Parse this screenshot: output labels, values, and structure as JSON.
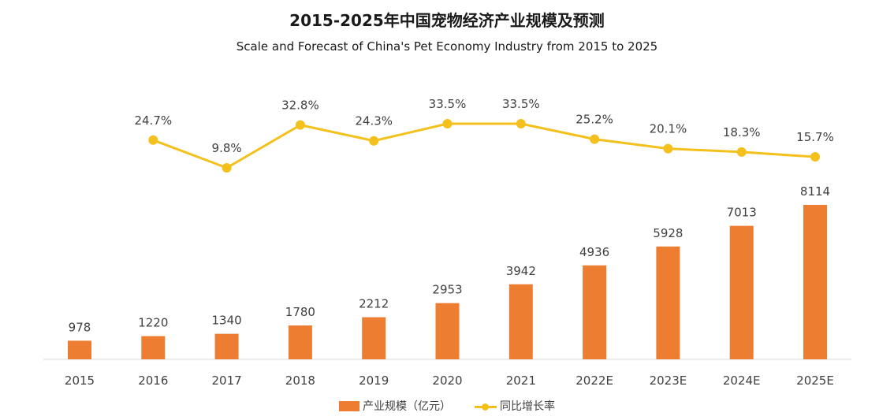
{
  "chart_data": {
    "type": "bar",
    "title": "2015-2025年中国宠物经济产业规模及预测",
    "subtitle": "Scale and Forecast of China's Pet Economy Industry from 2015 to 2025",
    "categories": [
      "2015",
      "2016",
      "2017",
      "2018",
      "2019",
      "2020",
      "2021",
      "2022E",
      "2023E",
      "2024E",
      "2025E"
    ],
    "series": [
      {
        "name": "产业规模（亿元）",
        "type": "bar",
        "color": "#ED7D31",
        "values": [
          978,
          1220,
          1340,
          1780,
          2212,
          2953,
          3942,
          4936,
          5928,
          7013,
          8114
        ],
        "labels": [
          "978",
          "1220",
          "1340",
          "1780",
          "2212",
          "2953",
          "3942",
          "4936",
          "5928",
          "7013",
          "8114"
        ]
      },
      {
        "name": "同比增长率",
        "type": "line",
        "color": "#F4C01B",
        "values": [
          null,
          24.7,
          9.8,
          32.8,
          24.3,
          33.5,
          33.5,
          25.2,
          20.1,
          18.3,
          15.7
        ],
        "labels": [
          "",
          "24.7%",
          "9.8%",
          "32.8%",
          "24.3%",
          "33.5%",
          "33.5%",
          "25.2%",
          "20.1%",
          "18.3%",
          "15.7%"
        ]
      }
    ],
    "xlabel": "",
    "ylabel": "",
    "grid": false,
    "legend_position": "bottom-center"
  }
}
